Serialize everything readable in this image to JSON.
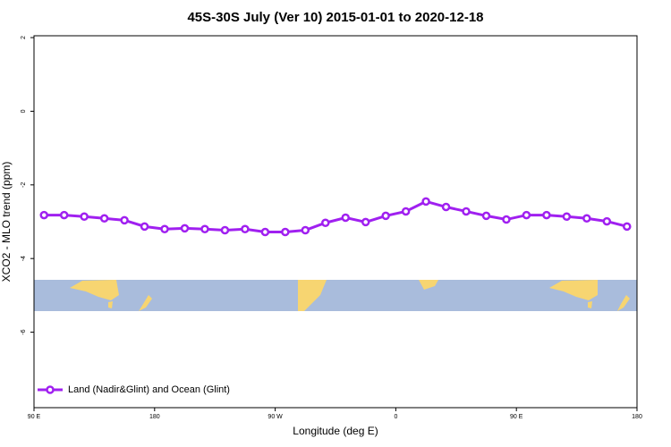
{
  "chart_data": {
    "type": "line",
    "title": "45S-30S July (Ver 10)   2015-01-01 to 2020-12-18",
    "x_label": "Longitude (deg E)",
    "y_label": "XCO2 - MLO trend (ppm)",
    "x": [
      97.5,
      112.5,
      127.5,
      142.5,
      157.5,
      172.5,
      187.5,
      202.5,
      217.5,
      232.5,
      247.5,
      262.5,
      277.5,
      292.5,
      307.5,
      322.5,
      337.5,
      352.5,
      367.5,
      382.5,
      397.5,
      412.5,
      427.5,
      442.5,
      457.5,
      472.5,
      487.5,
      502.5,
      517.5,
      532.5
    ],
    "series": [
      {
        "name": "Land (Nadir&Glint) and Ocean (Glint)",
        "color": "#a020f0",
        "values": [
          -2.82,
          -2.82,
          -2.86,
          -2.91,
          -2.96,
          -3.13,
          -3.2,
          -3.18,
          -3.2,
          -3.23,
          -3.2,
          -3.28,
          -3.28,
          -3.23,
          -3.03,
          -2.89,
          -3.01,
          -2.84,
          -2.72,
          -2.45,
          -2.6,
          -2.72,
          -2.84,
          -2.94,
          -2.82,
          -2.82,
          -2.86,
          -2.91,
          -2.99,
          -3.13
        ]
      }
    ],
    "xlim": [
      90,
      540
    ],
    "xticks": [
      {
        "value": 90,
        "label": "90 E"
      },
      {
        "value": 180,
        "label": "180"
      },
      {
        "value": 270,
        "label": "90 W"
      },
      {
        "value": 360,
        "label": "0"
      },
      {
        "value": 450,
        "label": "90 E"
      },
      {
        "value": 540,
        "label": "180"
      }
    ],
    "ylim": [
      -8.05,
      2.05
    ],
    "yticks": [
      2,
      0,
      -2,
      -4,
      -6
    ],
    "legend_position": "bottom-left"
  }
}
